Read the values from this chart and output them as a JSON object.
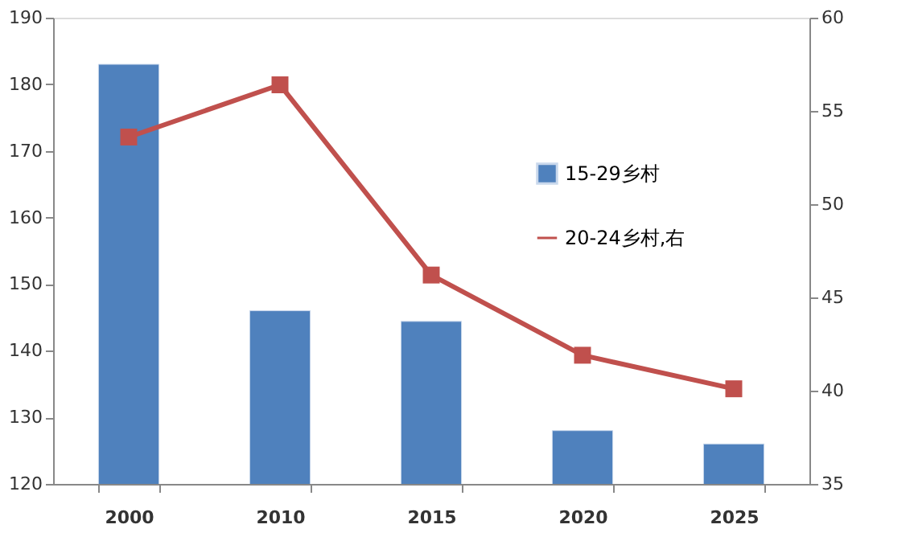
{
  "chart_data": {
    "type": "bar",
    "categories": [
      "2000",
      "2010",
      "2015",
      "2020",
      "2025"
    ],
    "series": [
      {
        "name": "15-29乡村",
        "color": "#4f81bd",
        "values": [
          183,
          146,
          144.4,
          128,
          126
        ]
      },
      {
        "name": "20-24乡村,右",
        "type": "line",
        "axis": "y2",
        "color": "#c0504d",
        "marker": "square",
        "values": [
          53.6,
          56.4,
          46.2,
          41.9,
          40.1
        ]
      }
    ],
    "ylim": [
      120,
      190
    ],
    "yticks": [
      120,
      130,
      140,
      150,
      160,
      170,
      180,
      190
    ],
    "y2lim": [
      35,
      60
    ],
    "y2ticks": [
      35,
      40,
      45,
      50,
      55,
      60
    ],
    "grid": false,
    "legend": "right"
  }
}
